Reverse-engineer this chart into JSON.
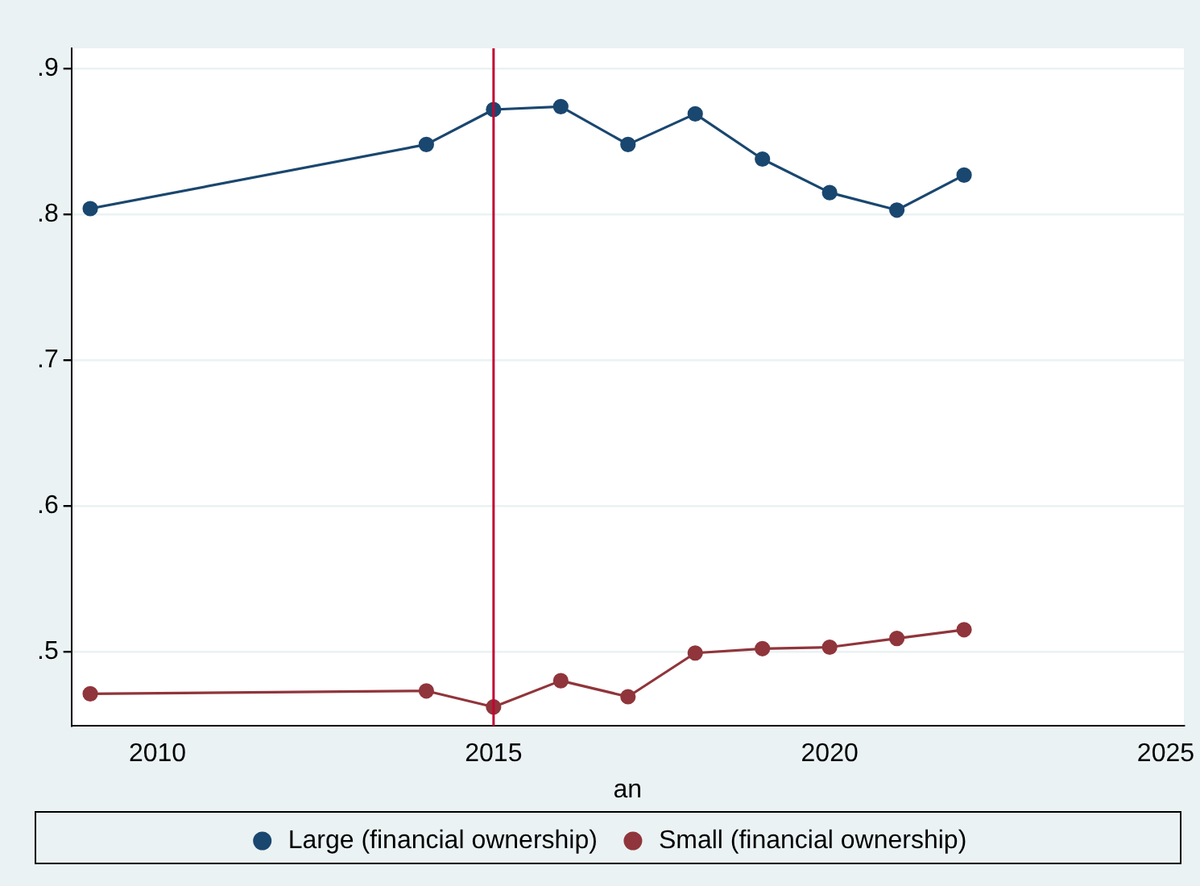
{
  "chart_data": {
    "type": "line",
    "xlabel": "an",
    "x": [
      2009,
      2014,
      2015,
      2016,
      2017,
      2018,
      2019,
      2020,
      2021,
      2022
    ],
    "series": [
      {
        "name": "Large (financial ownership)",
        "color": "#1a476f",
        "values": [
          0.804,
          0.848,
          0.872,
          0.874,
          0.848,
          0.869,
          0.838,
          0.815,
          0.803,
          0.827
        ]
      },
      {
        "name": "Small (financial ownership)",
        "color": "#90353b",
        "values": [
          0.471,
          0.473,
          0.462,
          0.48,
          0.469,
          0.499,
          0.502,
          0.503,
          0.509,
          0.515
        ]
      }
    ],
    "xlim": [
      2008.72,
      2025.27
    ],
    "xticks": [
      2010,
      2015,
      2020,
      2025
    ],
    "ylim": [
      0.449,
      0.914
    ],
    "yticks": [
      {
        "value": 0.5,
        "label": ".5"
      },
      {
        "value": 0.6,
        "label": ".6"
      },
      {
        "value": 0.7,
        "label": ".7"
      },
      {
        "value": 0.8,
        "label": ".8"
      },
      {
        "value": 0.9,
        "label": ".9"
      }
    ],
    "ref_lines": [
      {
        "axis": "x",
        "value": 2015,
        "color": "#c10534"
      }
    ],
    "grid": "y",
    "legend": "bottom",
    "marker": "circle",
    "line_style": "solid"
  }
}
